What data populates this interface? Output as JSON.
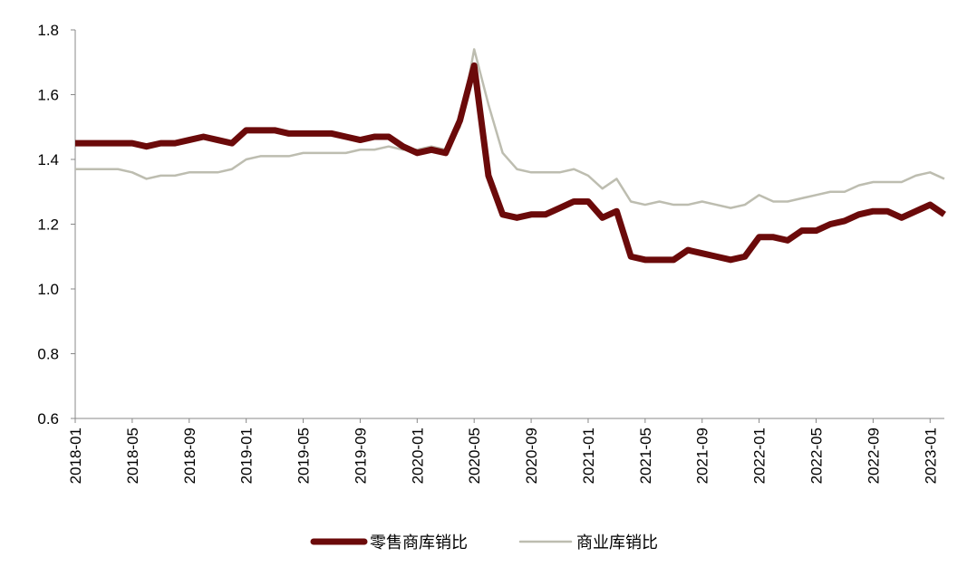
{
  "chart_data": {
    "type": "line",
    "x": [
      "2018-01",
      "2018-02",
      "2018-03",
      "2018-04",
      "2018-05",
      "2018-06",
      "2018-07",
      "2018-08",
      "2018-09",
      "2018-10",
      "2018-11",
      "2018-12",
      "2019-01",
      "2019-02",
      "2019-03",
      "2019-04",
      "2019-05",
      "2019-06",
      "2019-07",
      "2019-08",
      "2019-09",
      "2019-10",
      "2019-11",
      "2019-12",
      "2020-01",
      "2020-02",
      "2020-03",
      "2020-04",
      "2020-05",
      "2020-06",
      "2020-07",
      "2020-08",
      "2020-09",
      "2020-10",
      "2020-11",
      "2020-12",
      "2021-01",
      "2021-02",
      "2021-03",
      "2021-04",
      "2021-05",
      "2021-06",
      "2021-07",
      "2021-08",
      "2021-09",
      "2021-10",
      "2021-11",
      "2021-12",
      "2022-01",
      "2022-02",
      "2022-03",
      "2022-04",
      "2022-05",
      "2022-06",
      "2022-07",
      "2022-08",
      "2022-09",
      "2022-10",
      "2022-11",
      "2022-12",
      "2023-01",
      "2023-02"
    ],
    "x_tick_labels": [
      "2018-01",
      "2018-05",
      "2018-09",
      "2019-01",
      "2019-05",
      "2019-09",
      "2020-01",
      "2020-05",
      "2020-09",
      "2021-01",
      "2021-05",
      "2021-09",
      "2022-01",
      "2022-05",
      "2022-09",
      "2023-01"
    ],
    "y_tick_labels": [
      "0.6",
      "0.8",
      "1.0",
      "1.2",
      "1.4",
      "1.6",
      "1.8"
    ],
    "ylim": [
      0.6,
      1.8
    ],
    "grid": false,
    "legend_position": "bottom",
    "series": [
      {
        "name": "零售商库销比",
        "color": "#6b0a0a",
        "values": [
          1.45,
          1.45,
          1.45,
          1.45,
          1.45,
          1.44,
          1.45,
          1.45,
          1.46,
          1.47,
          1.46,
          1.45,
          1.49,
          1.49,
          1.49,
          1.48,
          1.48,
          1.48,
          1.48,
          1.47,
          1.46,
          1.47,
          1.47,
          1.44,
          1.42,
          1.43,
          1.42,
          1.52,
          1.69,
          1.35,
          1.23,
          1.22,
          1.23,
          1.23,
          1.25,
          1.27,
          1.27,
          1.22,
          1.24,
          1.1,
          1.09,
          1.09,
          1.09,
          1.12,
          1.11,
          1.1,
          1.09,
          1.1,
          1.16,
          1.16,
          1.15,
          1.18,
          1.18,
          1.2,
          1.21,
          1.23,
          1.24,
          1.24,
          1.22,
          1.24,
          1.26,
          1.23
        ]
      },
      {
        "name": "商业库销比",
        "color": "#bdbdb0",
        "values": [
          1.37,
          1.37,
          1.37,
          1.37,
          1.36,
          1.34,
          1.35,
          1.35,
          1.36,
          1.36,
          1.36,
          1.37,
          1.4,
          1.41,
          1.41,
          1.41,
          1.42,
          1.42,
          1.42,
          1.42,
          1.43,
          1.43,
          1.44,
          1.43,
          1.43,
          1.44,
          1.43,
          1.5,
          1.74,
          1.57,
          1.42,
          1.37,
          1.36,
          1.36,
          1.36,
          1.37,
          1.35,
          1.31,
          1.34,
          1.27,
          1.26,
          1.27,
          1.26,
          1.26,
          1.27,
          1.26,
          1.25,
          1.26,
          1.29,
          1.27,
          1.27,
          1.28,
          1.29,
          1.3,
          1.3,
          1.32,
          1.33,
          1.33,
          1.33,
          1.35,
          1.36,
          1.34
        ]
      }
    ]
  }
}
